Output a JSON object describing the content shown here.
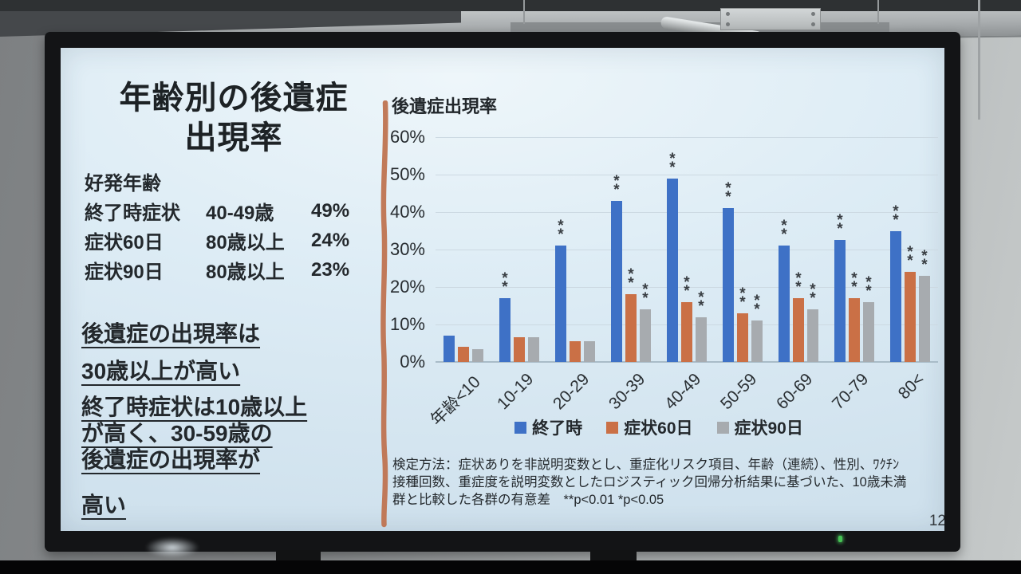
{
  "scene": {
    "power_led_color": "#46c254",
    "slide_background": "#ddecf5",
    "wall_color": "#9b9fa1",
    "bezel_color": "#131416"
  },
  "slide": {
    "title_lines": [
      "年齢別の後遺症",
      "出現率"
    ],
    "subtitle": "好発年齢",
    "stats": [
      {
        "label": "終了時症状",
        "age": "40-49歳",
        "value": "49%"
      },
      {
        "label": "症状60日",
        "age": "80歳以上",
        "value": "24%"
      },
      {
        "label": "症状90日",
        "age": "80歳以上",
        "value": "23%"
      }
    ],
    "highlight_lines": [
      "後遺症の出現率は",
      "30歳以上が高い",
      "終了時症状は10歳以上",
      "が高く、30-59歳の",
      "後遺症の出現率が",
      "高い"
    ],
    "footnote_lines": [
      "検定方法：症状ありを非説明変数とし、重症化リスク項目、年齢（連続）、性別、ﾜｸﾁﾝ",
      "接種回数、重症度を説明変数としたロジスティック回帰分析結果に基づいた、10歳未満",
      "群と比較した各群の有意差　**p<0.01 *p<0.05"
    ],
    "page_number": "12"
  },
  "chart_data": {
    "type": "bar",
    "title": "後遺症出現率",
    "categories": [
      "年齢<10",
      "10-19",
      "20-29",
      "30-39",
      "40-49",
      "50-59",
      "60-69",
      "70-79",
      "80<"
    ],
    "series": [
      {
        "name": "終了時",
        "color": "#3e71c6",
        "values": [
          7,
          17,
          31,
          43,
          49,
          41,
          31,
          32.5,
          35
        ],
        "significance": [
          "",
          "**",
          "**",
          "**",
          "**",
          "**",
          "**",
          "**",
          "**"
        ]
      },
      {
        "name": "症状60日",
        "color": "#ca7046",
        "values": [
          4,
          6.5,
          5.5,
          18,
          16,
          13,
          17,
          17,
          24
        ],
        "significance": [
          "",
          "",
          "",
          "**",
          "**",
          "**",
          "**",
          "**",
          "**"
        ]
      },
      {
        "name": "症状90日",
        "color": "#a7abaf",
        "values": [
          3.5,
          6.5,
          5.5,
          14,
          12,
          11,
          14,
          16,
          23
        ],
        "significance": [
          "",
          "",
          "",
          "**",
          "**",
          "**",
          "**",
          "**",
          "**"
        ]
      }
    ],
    "ylabel": "",
    "ylim": [
      0,
      60
    ],
    "ytick_labels": [
      "0%",
      "10%",
      "20%",
      "30%",
      "40%",
      "50%",
      "60%"
    ],
    "grid": true,
    "legend_position": "bottom",
    "significance_note": "**p<0.01 *p<0.05"
  }
}
